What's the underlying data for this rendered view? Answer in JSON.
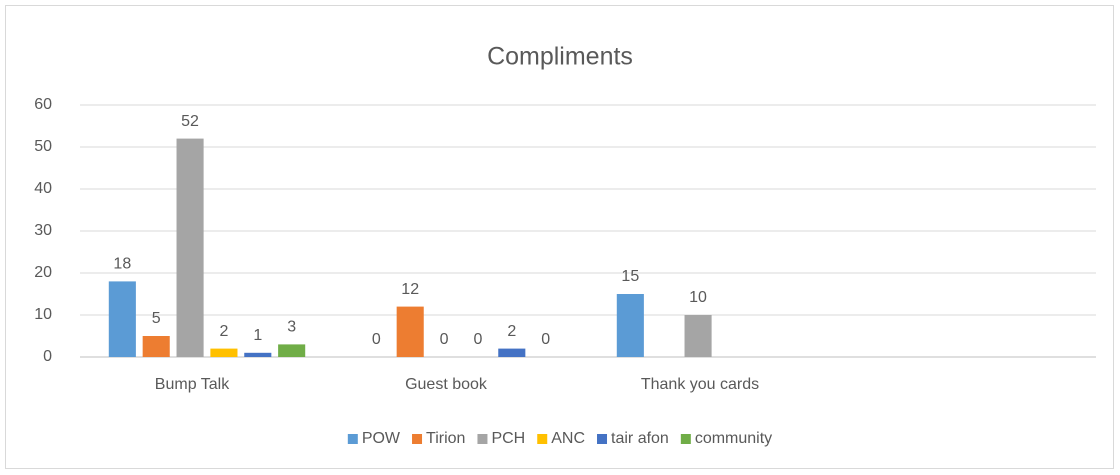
{
  "chart_data": {
    "type": "bar",
    "title": "Compliments",
    "categories": [
      "Bump Talk",
      "Guest book",
      "Thank you cards",
      null
    ],
    "series": [
      {
        "name": "POW",
        "color": "#5b9bd5",
        "values": [
          18,
          0,
          15,
          null
        ]
      },
      {
        "name": "Tirion",
        "color": "#ed7d31",
        "values": [
          5,
          12,
          null,
          null
        ]
      },
      {
        "name": "PCH",
        "color": "#a5a5a5",
        "values": [
          52,
          0,
          10,
          null
        ]
      },
      {
        "name": "ANC",
        "color": "#ffc000",
        "values": [
          2,
          0,
          null,
          null
        ]
      },
      {
        "name": "tair afon",
        "color": "#4472c4",
        "values": [
          1,
          2,
          null,
          null
        ]
      },
      {
        "name": "community",
        "color": "#70ad47",
        "values": [
          3,
          0,
          null,
          null
        ]
      }
    ],
    "ylim": [
      0,
      60
    ],
    "yticks": [
      0,
      10,
      20,
      30,
      40,
      50,
      60
    ],
    "grid": true,
    "legend": "bottom"
  }
}
